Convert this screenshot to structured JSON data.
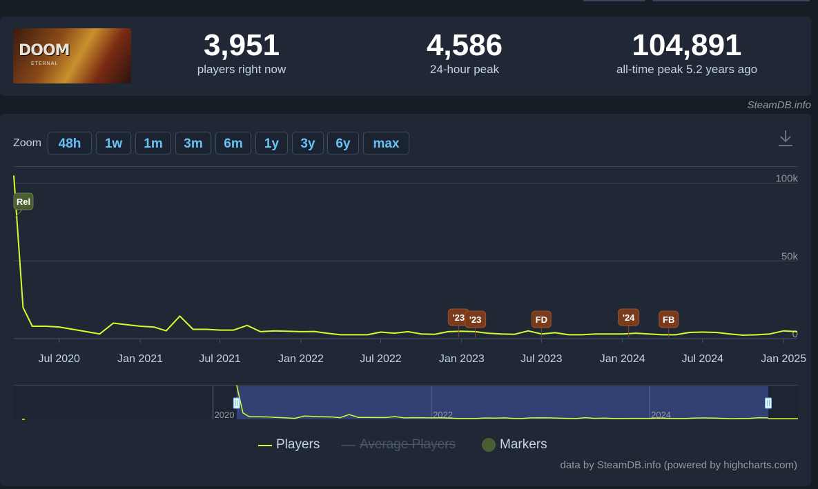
{
  "game": {
    "logo_text": "DOOM",
    "logo_sub": "ETERNAL"
  },
  "stats": [
    {
      "value": "3,951",
      "label": "players right now"
    },
    {
      "value": "4,586",
      "label": "24-hour peak"
    },
    {
      "value": "104,891",
      "label": "all-time peak 5.2 years ago"
    }
  ],
  "credit": "SteamDB.info",
  "zoom": {
    "label": "Zoom",
    "buttons": [
      "48h",
      "1w",
      "1m",
      "3m",
      "6m",
      "1y",
      "3y",
      "6y",
      "max"
    ]
  },
  "legend": {
    "players": "Players",
    "average": "Average Players",
    "markers": "Markers"
  },
  "footer": "data by SteamDB.info (powered by highcharts.com)",
  "colors": {
    "players": "#d4ff2a",
    "marker_rel": "#4a5e33",
    "marker_event": "#7a3a1c",
    "navigator_fill": "#3a4a8a",
    "accent": "#67c1f5"
  },
  "chart_data": {
    "type": "line",
    "series": [
      {
        "name": "Players",
        "x": [
          "2020-03-20",
          "2020-04-10",
          "2020-05-01",
          "2020-06-01",
          "2020-07-01",
          "2020-08-01",
          "2020-09-01",
          "2020-10-01",
          "2020-11-01",
          "2020-12-01",
          "2021-01-01",
          "2021-02-01",
          "2021-03-01",
          "2021-04-01",
          "2021-05-01",
          "2021-06-01",
          "2021-07-01",
          "2021-08-01",
          "2021-09-01",
          "2021-10-01",
          "2021-11-01",
          "2021-12-01",
          "2022-01-01",
          "2022-02-01",
          "2022-03-01",
          "2022-04-01",
          "2022-05-01",
          "2022-06-01",
          "2022-07-01",
          "2022-08-01",
          "2022-09-01",
          "2022-10-01",
          "2022-11-01",
          "2022-12-01",
          "2023-01-01",
          "2023-02-01",
          "2023-03-01",
          "2023-04-01",
          "2023-05-01",
          "2023-06-01",
          "2023-07-01",
          "2023-08-01",
          "2023-09-01",
          "2023-10-01",
          "2023-11-01",
          "2023-12-01",
          "2024-01-01",
          "2024-02-01",
          "2024-03-01",
          "2024-04-01",
          "2024-05-01",
          "2024-06-01",
          "2024-07-01",
          "2024-08-01",
          "2024-09-01",
          "2024-10-01",
          "2024-11-01",
          "2024-12-01",
          "2025-01-01",
          "2025-02-01"
        ],
        "values": [
          104891,
          20000,
          8000,
          8000,
          7500,
          6000,
          4500,
          3000,
          10000,
          9000,
          8000,
          7500,
          5000,
          14500,
          6000,
          6000,
          5500,
          5500,
          8500,
          4500,
          5000,
          4800,
          4500,
          4600,
          3500,
          2500,
          2500,
          2500,
          4200,
          3500,
          4500,
          3000,
          2800,
          4500,
          4800,
          4500,
          3500,
          3000,
          2800,
          5000,
          3000,
          3800,
          2500,
          2500,
          3000,
          3000,
          3000,
          3500,
          3000,
          2500,
          2500,
          4000,
          4200,
          4000,
          3000,
          2200,
          2500,
          3000,
          5000,
          4500
        ]
      }
    ],
    "markers": [
      {
        "label": "Rel",
        "date": "2020-03-20"
      },
      {
        "label": "'23",
        "date": "2022-12-25"
      },
      {
        "label": "'23",
        "date": "2023-02-01"
      },
      {
        "label": "FD",
        "date": "2023-07-01"
      },
      {
        "label": "'24",
        "date": "2024-01-15"
      },
      {
        "label": "FB",
        "date": "2024-04-15"
      }
    ],
    "x_ticks": [
      "Jul 2020",
      "Jan 2021",
      "Jul 2021",
      "Jan 2022",
      "Jul 2022",
      "Jan 2023",
      "Jul 2023",
      "Jan 2024",
      "Jul 2024",
      "Jan 2025"
    ],
    "y_ticks": [
      "0",
      "50k",
      "100k"
    ],
    "ylim": [
      0,
      110000
    ],
    "grid": true,
    "navigator": {
      "labels": [
        "2020",
        "2022",
        "2024"
      ],
      "range": [
        "2020-03-20",
        "2025-02-01"
      ]
    }
  }
}
